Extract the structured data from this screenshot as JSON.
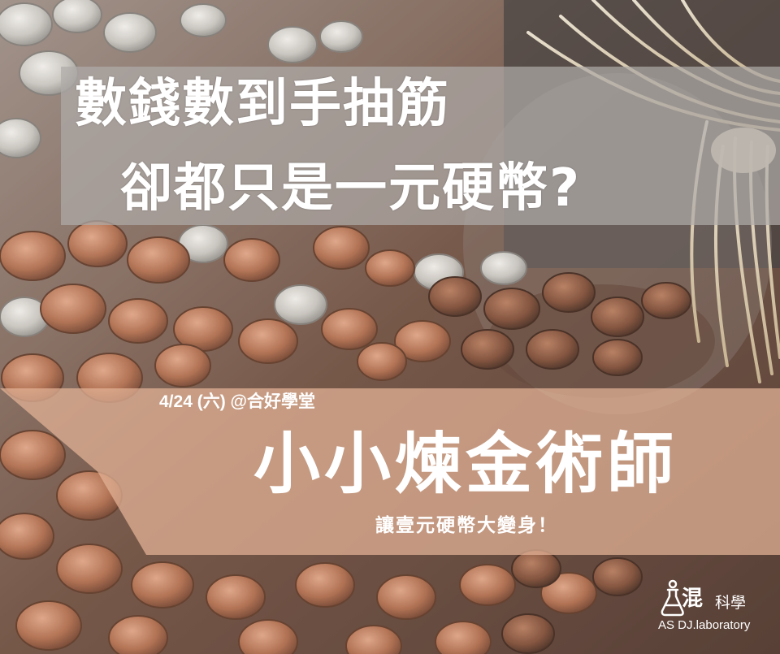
{
  "headline": {
    "line1": "數錢數到手抽筋",
    "line2": "卻都只是一元硬幣?"
  },
  "event": {
    "date_venue": "4/24 (六) @合好學堂",
    "title": "小小煉金術師",
    "subtitle": "讓壹元硬幣大變身！"
  },
  "logo": {
    "word": "混",
    "science": "科學",
    "english": "AS DJ.laboratory"
  },
  "icons": {
    "logo_mark": "flask-person-icon",
    "background": "pile-of-coins-photo"
  },
  "colors": {
    "text": "#ffffff",
    "band_top": "#afaaa8",
    "band_bottom": "#e2b296",
    "coin_copper": "#b06a48"
  }
}
